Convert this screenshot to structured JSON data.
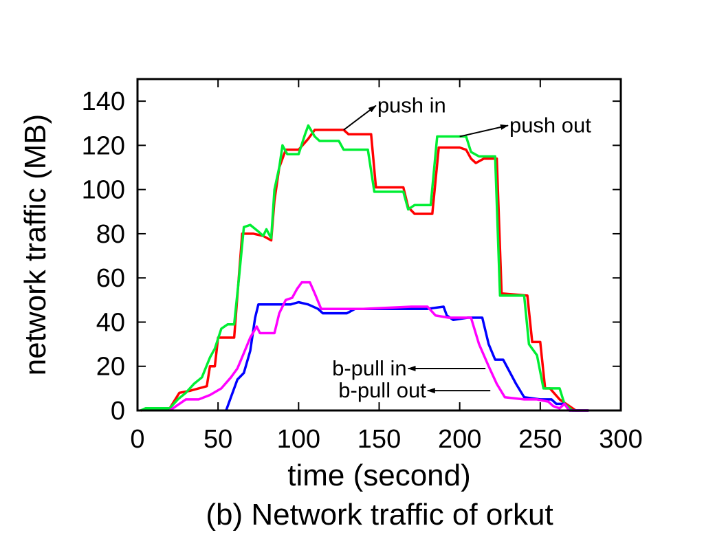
{
  "chart_data": {
    "type": "line",
    "title": "",
    "caption": "(b) Network traffic of orkut",
    "xlabel": "time (second)",
    "ylabel": "network traffic (MB)",
    "xlim": [
      0,
      300
    ],
    "ylim": [
      0,
      150
    ],
    "xticks": [
      0,
      50,
      100,
      150,
      200,
      250,
      300
    ],
    "yticks": [
      0,
      20,
      40,
      60,
      80,
      100,
      120,
      140
    ],
    "grid": false,
    "legend": "none",
    "series": [
      {
        "name": "push in",
        "color": "#ff0000",
        "points": [
          [
            2,
            0
          ],
          [
            8,
            1
          ],
          [
            20,
            1
          ],
          [
            26,
            8
          ],
          [
            33,
            9
          ],
          [
            43,
            11
          ],
          [
            45,
            20
          ],
          [
            48,
            20
          ],
          [
            50,
            33
          ],
          [
            58,
            33
          ],
          [
            60,
            33
          ],
          [
            65,
            80
          ],
          [
            72,
            80
          ],
          [
            78,
            79
          ],
          [
            83,
            77
          ],
          [
            85,
            95
          ],
          [
            88,
            110
          ],
          [
            92,
            118
          ],
          [
            100,
            118
          ],
          [
            106,
            123
          ],
          [
            110,
            127
          ],
          [
            128,
            127
          ],
          [
            131,
            125
          ],
          [
            145,
            125
          ],
          [
            148,
            101
          ],
          [
            165,
            101
          ],
          [
            168,
            92
          ],
          [
            172,
            89
          ],
          [
            183,
            89
          ],
          [
            187,
            119
          ],
          [
            200,
            119
          ],
          [
            204,
            118
          ],
          [
            207,
            114
          ],
          [
            210,
            112
          ],
          [
            215,
            114
          ],
          [
            223,
            114
          ],
          [
            226,
            53
          ],
          [
            242,
            52
          ],
          [
            245,
            31
          ],
          [
            250,
            31
          ],
          [
            253,
            10
          ],
          [
            256,
            10
          ],
          [
            262,
            5
          ],
          [
            268,
            2
          ],
          [
            272,
            0
          ],
          [
            280,
            0
          ]
        ]
      },
      {
        "name": "push out",
        "color": "#00ee33",
        "points": [
          [
            2,
            0
          ],
          [
            5,
            1
          ],
          [
            20,
            1
          ],
          [
            25,
            5
          ],
          [
            30,
            8
          ],
          [
            35,
            12
          ],
          [
            40,
            15
          ],
          [
            45,
            24
          ],
          [
            48,
            28
          ],
          [
            52,
            37
          ],
          [
            56,
            39
          ],
          [
            60,
            39
          ],
          [
            63,
            60
          ],
          [
            66,
            83
          ],
          [
            70,
            84
          ],
          [
            75,
            81
          ],
          [
            78,
            79
          ],
          [
            80,
            82
          ],
          [
            83,
            78
          ],
          [
            85,
            100
          ],
          [
            88,
            110
          ],
          [
            90,
            120
          ],
          [
            93,
            116
          ],
          [
            100,
            116
          ],
          [
            104,
            125
          ],
          [
            106,
            129
          ],
          [
            110,
            124
          ],
          [
            113,
            122
          ],
          [
            125,
            122
          ],
          [
            128,
            118
          ],
          [
            143,
            118
          ],
          [
            147,
            99
          ],
          [
            165,
            99
          ],
          [
            168,
            91
          ],
          [
            172,
            93
          ],
          [
            182,
            93
          ],
          [
            186,
            124
          ],
          [
            200,
            124
          ],
          [
            204,
            124
          ],
          [
            207,
            117
          ],
          [
            212,
            115
          ],
          [
            222,
            115
          ],
          [
            225,
            52
          ],
          [
            240,
            52
          ],
          [
            243,
            30
          ],
          [
            248,
            25
          ],
          [
            252,
            10
          ],
          [
            262,
            10
          ],
          [
            265,
            3
          ],
          [
            270,
            0
          ],
          [
            280,
            0
          ]
        ]
      },
      {
        "name": "b-pull in",
        "color": "#0000ff",
        "points": [
          [
            55,
            0
          ],
          [
            58,
            6
          ],
          [
            62,
            14
          ],
          [
            66,
            17
          ],
          [
            70,
            27
          ],
          [
            73,
            42
          ],
          [
            75,
            48
          ],
          [
            80,
            48
          ],
          [
            95,
            48
          ],
          [
            100,
            49
          ],
          [
            106,
            48
          ],
          [
            112,
            46
          ],
          [
            115,
            44
          ],
          [
            130,
            44
          ],
          [
            135,
            46
          ],
          [
            150,
            46
          ],
          [
            180,
            46
          ],
          [
            190,
            47
          ],
          [
            192,
            43
          ],
          [
            196,
            41
          ],
          [
            205,
            42
          ],
          [
            214,
            42
          ],
          [
            218,
            30
          ],
          [
            222,
            23
          ],
          [
            227,
            23
          ],
          [
            235,
            12
          ],
          [
            240,
            6
          ],
          [
            250,
            5
          ],
          [
            257,
            5
          ],
          [
            260,
            3
          ],
          [
            265,
            3
          ],
          [
            268,
            0
          ],
          [
            280,
            0
          ]
        ]
      },
      {
        "name": "b-pull out",
        "color": "#ff00ff",
        "points": [
          [
            20,
            0
          ],
          [
            22,
            1
          ],
          [
            30,
            5
          ],
          [
            38,
            5
          ],
          [
            45,
            7
          ],
          [
            52,
            10
          ],
          [
            58,
            15
          ],
          [
            62,
            19
          ],
          [
            66,
            26
          ],
          [
            70,
            33
          ],
          [
            74,
            38
          ],
          [
            76,
            35
          ],
          [
            85,
            35
          ],
          [
            88,
            44
          ],
          [
            92,
            50
          ],
          [
            96,
            51
          ],
          [
            99,
            55
          ],
          [
            102,
            58
          ],
          [
            107,
            58
          ],
          [
            110,
            53
          ],
          [
            114,
            46
          ],
          [
            120,
            46
          ],
          [
            140,
            46
          ],
          [
            170,
            47
          ],
          [
            180,
            47
          ],
          [
            185,
            43
          ],
          [
            193,
            42
          ],
          [
            207,
            42
          ],
          [
            212,
            30
          ],
          [
            218,
            20
          ],
          [
            223,
            12
          ],
          [
            228,
            6
          ],
          [
            240,
            5
          ],
          [
            248,
            5
          ],
          [
            255,
            4
          ],
          [
            258,
            2
          ],
          [
            262,
            1
          ],
          [
            265,
            3
          ],
          [
            268,
            0
          ],
          [
            280,
            0
          ]
        ]
      }
    ],
    "annotations": [
      {
        "text": "push in",
        "target": [
          128,
          127
        ],
        "arrow_to": [
          148,
          138
        ],
        "label_at": [
          148,
          138
        ],
        "anchor": "start"
      },
      {
        "text": "push out",
        "target": [
          200,
          124
        ],
        "arrow_to": [
          230,
          129
        ],
        "label_at": [
          230,
          129
        ],
        "anchor": "start"
      },
      {
        "text": "b-pull in",
        "target": [
          216,
          19
        ],
        "arrow_to": [
          168,
          19
        ],
        "label_at": [
          168,
          19
        ],
        "anchor": "end"
      },
      {
        "text": "b-pull out",
        "target": [
          219,
          9
        ],
        "arrow_to": [
          180,
          9
        ],
        "label_at": [
          180,
          9
        ],
        "anchor": "end"
      }
    ]
  }
}
